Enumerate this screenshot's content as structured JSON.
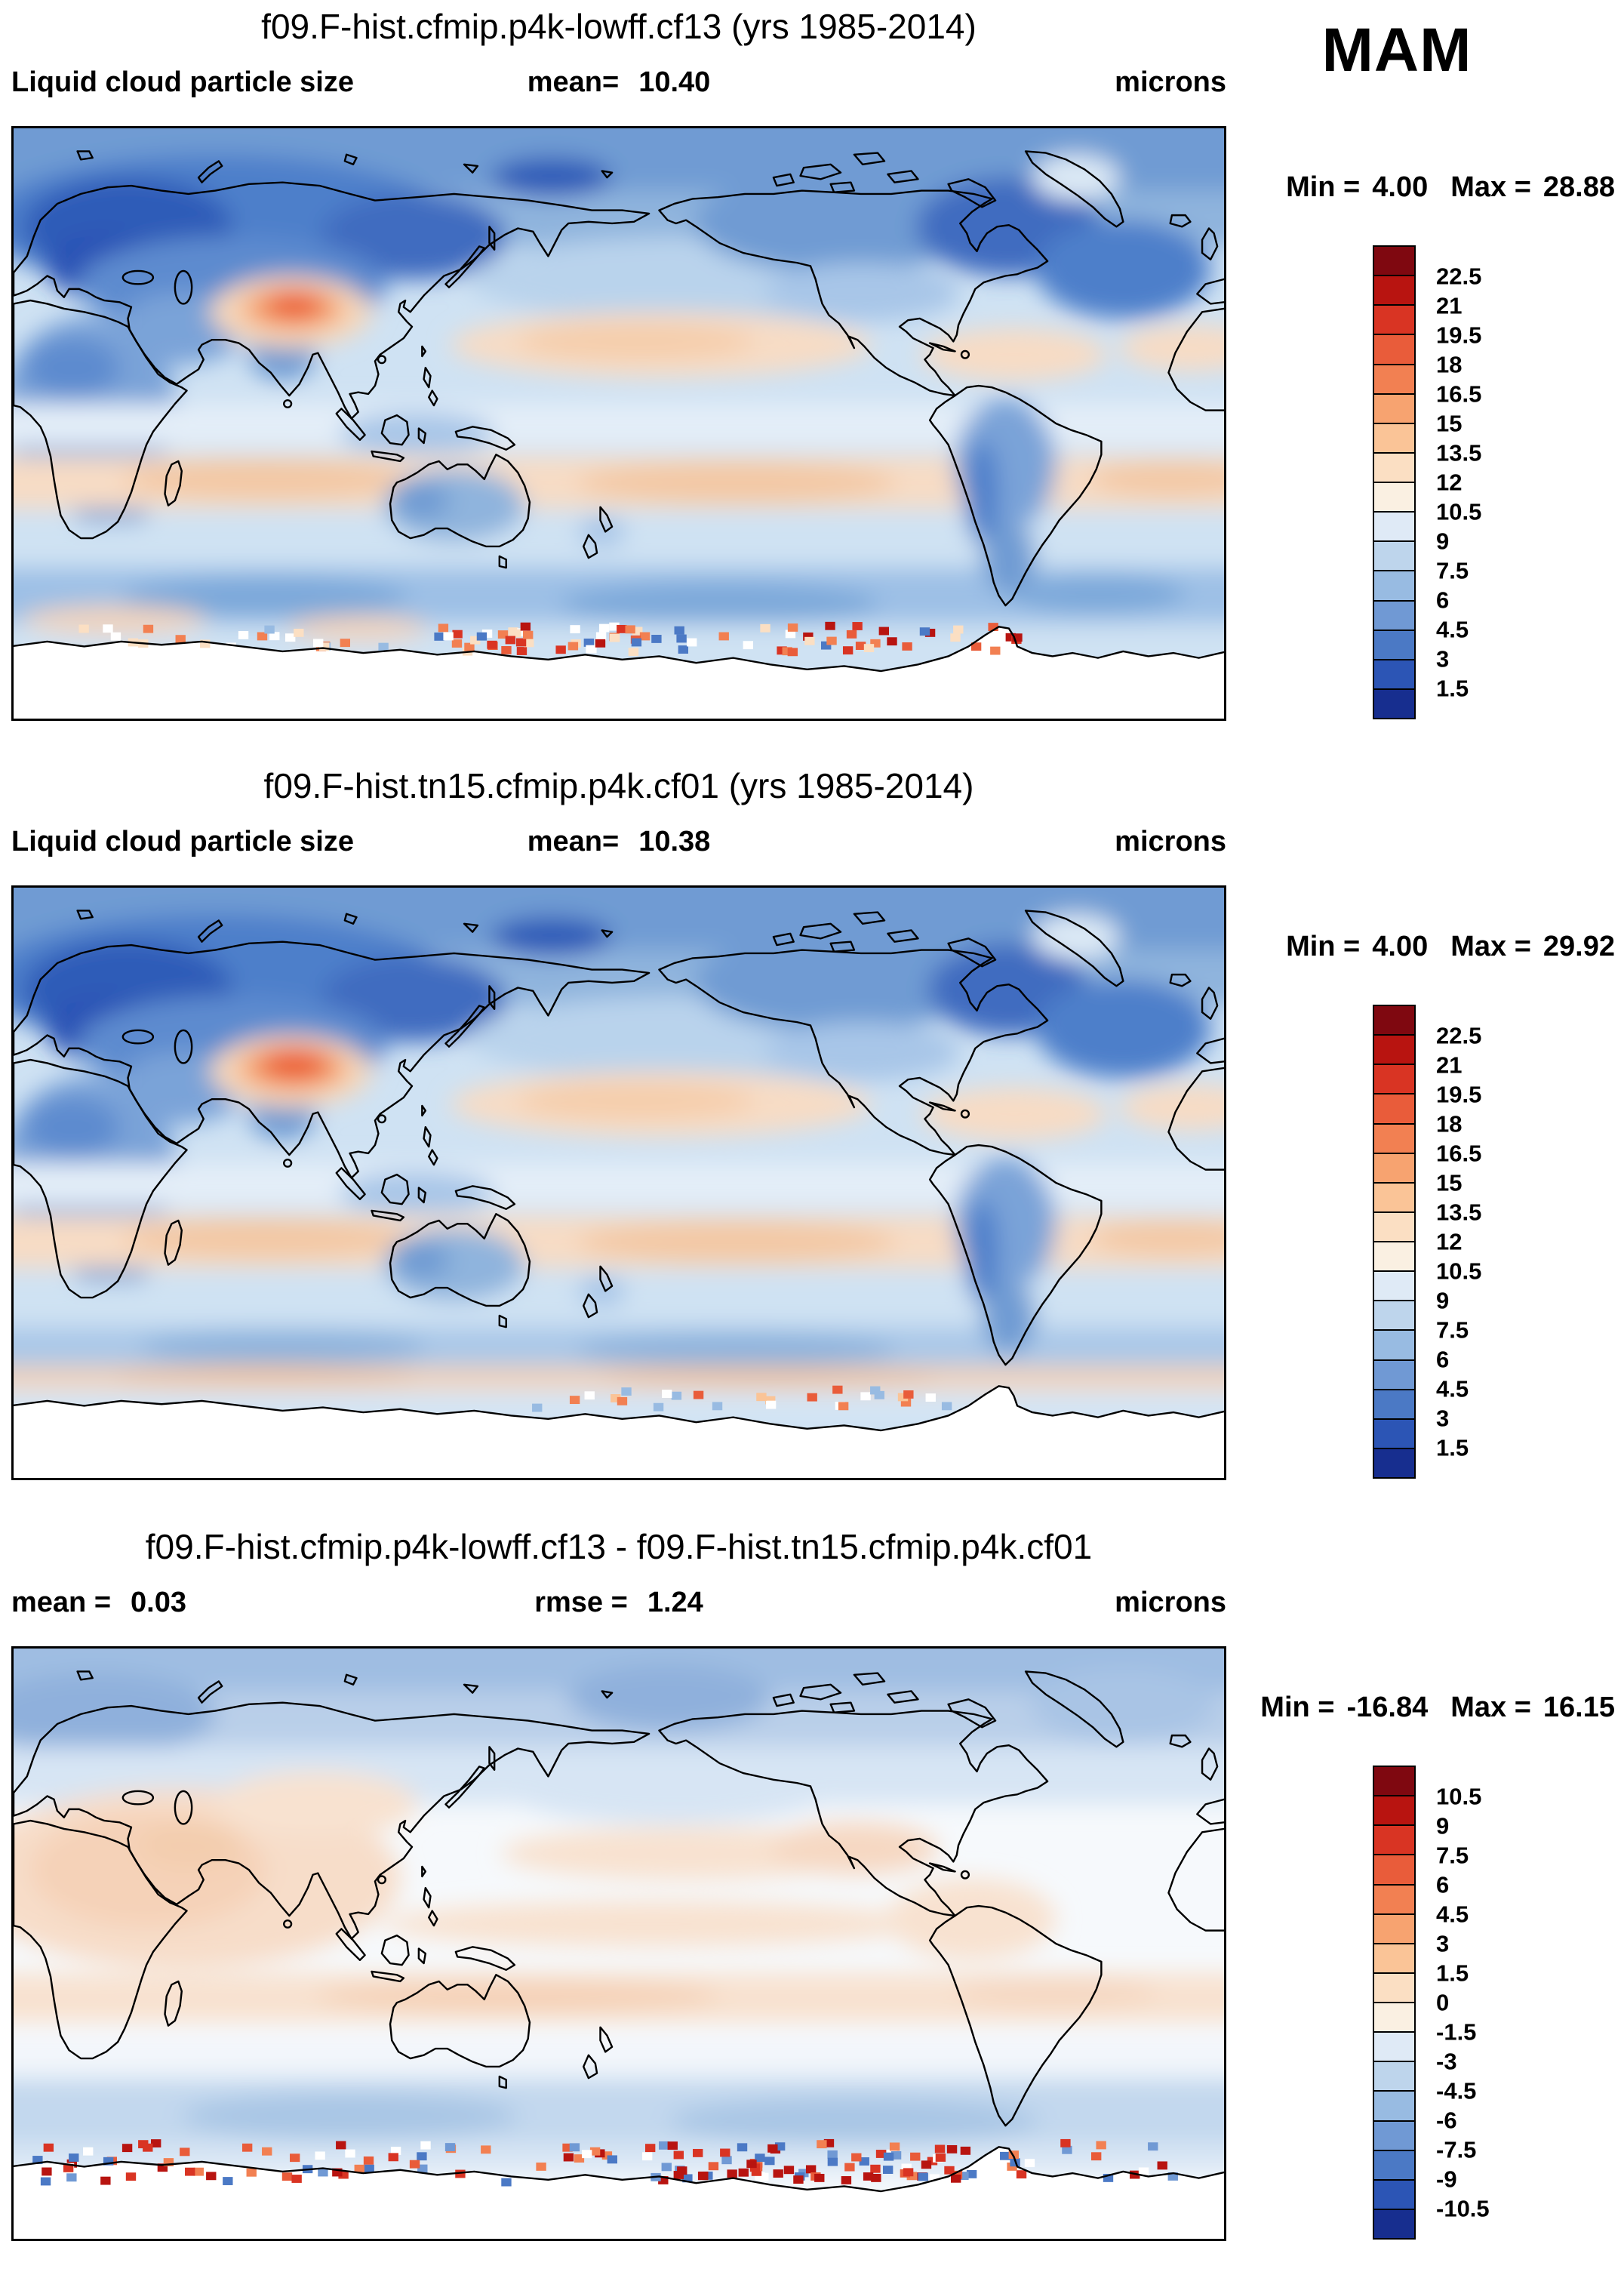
{
  "season_label": "MAM",
  "panels": [
    {
      "title": "f09.F-hist.cfmip.p4k-lowff.cf13 (yrs 1985-2014)",
      "row": {
        "left_label": "Liquid cloud particle size",
        "left_value": "",
        "mid_label": "mean=",
        "mid_value": "10.40",
        "units": "microns"
      },
      "min_label": "Min =",
      "min": "4.00",
      "max_label": "Max =",
      "max": "28.88",
      "colorbar": {
        "ticks": [
          "22.5",
          "21",
          "19.5",
          "18",
          "16.5",
          "15",
          "13.5",
          "12",
          "10.5",
          "9",
          "7.5",
          "6",
          "4.5",
          "3",
          "1.5"
        ],
        "colors": [
          "#7f0810",
          "#b81410",
          "#d93423",
          "#e95c3a",
          "#f28052",
          "#f7a370",
          "#fac497",
          "#fbdfc3",
          "#faf0e2",
          "#dfeaf6",
          "#bed5ec",
          "#98bbe2",
          "#7099d4",
          "#4b79c5",
          "#2c55b5",
          "#172e8f"
        ]
      }
    },
    {
      "title": "f09.F-hist.tn15.cfmip.p4k.cf01 (yrs 1985-2014)",
      "row": {
        "left_label": "Liquid cloud particle size",
        "left_value": "",
        "mid_label": "mean=",
        "mid_value": "10.38",
        "units": "microns"
      },
      "min_label": "Min =",
      "min": "4.00",
      "max_label": "Max =",
      "max": "29.92",
      "colorbar": {
        "ticks": [
          "22.5",
          "21",
          "19.5",
          "18",
          "16.5",
          "15",
          "13.5",
          "12",
          "10.5",
          "9",
          "7.5",
          "6",
          "4.5",
          "3",
          "1.5"
        ],
        "colors": [
          "#7f0810",
          "#b81410",
          "#d93423",
          "#e95c3a",
          "#f28052",
          "#f7a370",
          "#fac497",
          "#fbdfc3",
          "#faf0e2",
          "#dfeaf6",
          "#bed5ec",
          "#98bbe2",
          "#7099d4",
          "#4b79c5",
          "#2c55b5",
          "#172e8f"
        ]
      }
    },
    {
      "title": "f09.F-hist.cfmip.p4k-lowff.cf13 - f09.F-hist.tn15.cfmip.p4k.cf01",
      "row": {
        "left_label": "mean =",
        "left_value": "0.03",
        "mid_label": "rmse =",
        "mid_value": "1.24",
        "units": "microns"
      },
      "min_label": "Min =",
      "min": "-16.84",
      "max_label": "Max =",
      "max": "16.15",
      "colorbar": {
        "ticks": [
          "10.5",
          "9",
          "7.5",
          "6",
          "4.5",
          "3",
          "1.5",
          "0",
          "-1.5",
          "-3",
          "-4.5",
          "-6",
          "-7.5",
          "-9",
          "-10.5"
        ],
        "colors": [
          "#7f0810",
          "#b81410",
          "#d93423",
          "#e95c3a",
          "#f28052",
          "#f7a370",
          "#fac497",
          "#fbdfc3",
          "#faf0e2",
          "#dfeaf6",
          "#bed5ec",
          "#98bbe2",
          "#7099d4",
          "#4b79c5",
          "#2c55b5",
          "#172e8f"
        ]
      }
    }
  ],
  "chart_data": [
    {
      "type": "heatmap",
      "subtype": "global map, equirectangular projection, lon 0-360E (Greenwich at left edge), lat 90N-90S",
      "title": "f09.F-hist.cfmip.p4k-lowff.cf13 (yrs 1985-2014)",
      "variable": "Liquid cloud particle size",
      "season": "MAM",
      "units": "microns",
      "stats": {
        "mean": 10.4,
        "min": 4.0,
        "max": 28.88
      },
      "colorbar_levels": [
        1.5,
        3,
        4.5,
        6,
        7.5,
        9,
        10.5,
        12,
        13.5,
        15,
        16.5,
        18,
        19.5,
        21,
        22.5
      ],
      "colorbar_colors_top_to_bottom": [
        "#7f0810",
        "#b81410",
        "#d93423",
        "#e95c3a",
        "#f28052",
        "#f7a370",
        "#fac497",
        "#fbdfc3",
        "#faf0e2",
        "#dfeaf6",
        "#bed5ec",
        "#98bbe2",
        "#7099d4",
        "#4b79c5",
        "#2c55b5",
        "#172e8f"
      ],
      "legend_position": "right vertical colorbar"
    },
    {
      "type": "heatmap",
      "subtype": "global map, equirectangular projection, lon 0-360E (Greenwich at left edge), lat 90N-90S",
      "title": "f09.F-hist.tn15.cfmip.p4k.cf01 (yrs 1985-2014)",
      "variable": "Liquid cloud particle size",
      "season": "MAM",
      "units": "microns",
      "stats": {
        "mean": 10.38,
        "min": 4.0,
        "max": 29.92
      },
      "colorbar_levels": [
        1.5,
        3,
        4.5,
        6,
        7.5,
        9,
        10.5,
        12,
        13.5,
        15,
        16.5,
        18,
        19.5,
        21,
        22.5
      ],
      "colorbar_colors_top_to_bottom": [
        "#7f0810",
        "#b81410",
        "#d93423",
        "#e95c3a",
        "#f28052",
        "#f7a370",
        "#fac497",
        "#fbdfc3",
        "#faf0e2",
        "#dfeaf6",
        "#bed5ec",
        "#98bbe2",
        "#7099d4",
        "#4b79c5",
        "#2c55b5",
        "#172e8f"
      ],
      "legend_position": "right vertical colorbar"
    },
    {
      "type": "heatmap",
      "subtype": "global difference map, equirectangular projection, lon 0-360E (Greenwich at left edge), lat 90N-90S",
      "title": "f09.F-hist.cfmip.p4k-lowff.cf13 - f09.F-hist.tn15.cfmip.p4k.cf01",
      "season": "MAM",
      "units": "microns",
      "stats": {
        "mean": 0.03,
        "rmse": 1.24,
        "min": -16.84,
        "max": 16.15
      },
      "colorbar_levels": [
        -10.5,
        -9,
        -7.5,
        -6,
        -4.5,
        -3,
        -1.5,
        0,
        1.5,
        3,
        4.5,
        6,
        7.5,
        9,
        10.5
      ],
      "colorbar_colors_top_to_bottom": [
        "#7f0810",
        "#b81410",
        "#d93423",
        "#e95c3a",
        "#f28052",
        "#f7a370",
        "#fac497",
        "#fbdfc3",
        "#faf0e2",
        "#dfeaf6",
        "#bed5ec",
        "#98bbe2",
        "#7099d4",
        "#4b79c5",
        "#2c55b5",
        "#172e8f"
      ],
      "legend_position": "right vertical colorbar"
    }
  ]
}
